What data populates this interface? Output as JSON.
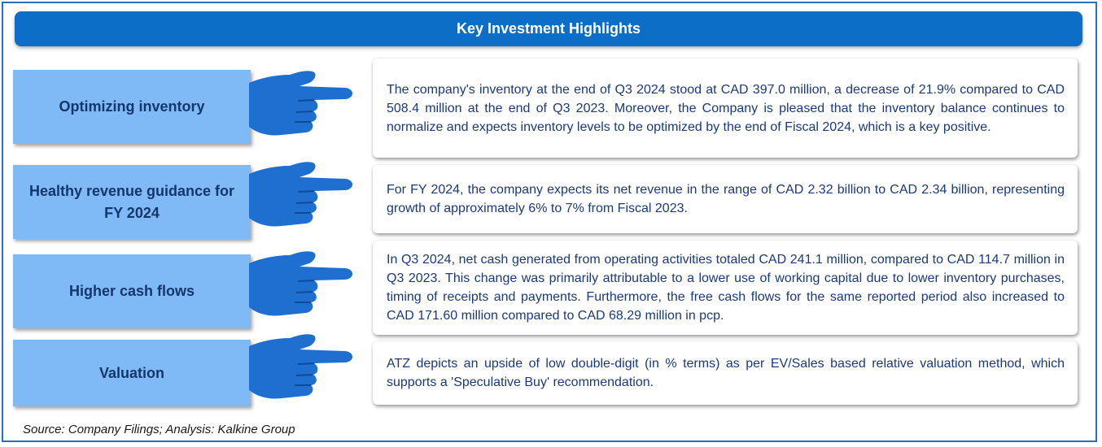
{
  "header": {
    "title": "Key Investment Highlights"
  },
  "highlights": [
    {
      "label": "Optimizing inventory",
      "text": "The company's inventory at the end of Q3 2024 stood at CAD 397.0 million, a decrease of 21.9% compared to CAD 508.4 million at the end of Q3 2023.  Moreover, the Company is pleased that the inventory balance continues to normalize and expects inventory levels to be optimized by the end of Fiscal 2024, which is a key positive."
    },
    {
      "label": "Healthy revenue guidance for FY 2024",
      "text": "For FY 2024, the company expects its net revenue in the range of CAD 2.32 billion to CAD 2.34 billion, representing growth of approximately 6% to 7% from Fiscal 2023."
    },
    {
      "label": "Higher cash flows",
      "text": "In Q3 2024, net cash generated from operating activities totaled CAD 241.1 million, compared to CAD 114.7 million in Q3 2023. This change was primarily attributable to a lower use of working capital due to lower inventory purchases, timing of receipts and payments. Furthermore, the free cash flows for the same reported period also increased to CAD 171.60 million compared to CAD 68.29 million in pcp."
    },
    {
      "label": "Valuation",
      "text": "ATZ depicts an upside of low double-digit (in % terms) as per EV/Sales based relative valuation method, which supports a 'Speculative Buy' recommendation."
    }
  ],
  "footer": {
    "source": "Source: Company Filings; Analysis: Kalkine Group"
  },
  "colors": {
    "banner": "#0d6ec8",
    "label_box": "#7fbaf7",
    "hand": "#1f6fd1",
    "text": "#1a3a7a",
    "frame_border": "#2a6fbe"
  },
  "icons": [
    "pointing-hand-icon"
  ]
}
